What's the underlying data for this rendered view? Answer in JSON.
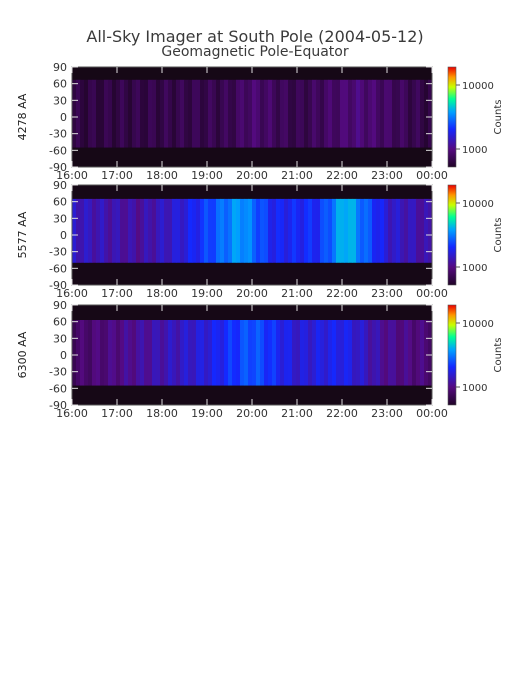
{
  "title": "All-Sky Imager at South Pole (2004-05-12)",
  "subtitle": "Geomagnetic Pole-Equator",
  "chart_data": [
    {
      "type": "heatmap",
      "ylabel": "4278 AA",
      "colorbar_label": "Counts",
      "colorbar_ticks": [
        "10000",
        "1000"
      ],
      "x_ticks": [
        "16:00",
        "17:00",
        "18:00",
        "19:00",
        "20:00",
        "21:00",
        "22:00",
        "23:00",
        "00:00"
      ],
      "xlim": [
        "16:00",
        "00:00"
      ],
      "y_ticks": [
        90,
        60,
        30,
        0,
        -30,
        -60,
        -90
      ],
      "ylim": [
        -90,
        90
      ],
      "data_coverage": [
        -55,
        67
      ],
      "intensity_profile": [
        {
          "time": "16:00",
          "level": 0.05
        },
        {
          "time": "19:30",
          "level": 0.08
        },
        {
          "time": "20:00",
          "level": 0.14
        },
        {
          "time": "21:00",
          "level": 0.07
        },
        {
          "time": "22:20",
          "level": 0.16
        },
        {
          "time": "00:00",
          "level": 0.05
        }
      ]
    },
    {
      "type": "heatmap",
      "ylabel": "5577 AA",
      "colorbar_label": "Counts",
      "colorbar_ticks": [
        "10000",
        "1000"
      ],
      "x_ticks": [
        "16:00",
        "17:00",
        "18:00",
        "19:00",
        "20:00",
        "21:00",
        "22:00",
        "23:00",
        "00:00"
      ],
      "xlim": [
        "16:00",
        "00:00"
      ],
      "y_ticks": [
        90,
        60,
        30,
        0,
        -30,
        -60,
        -90
      ],
      "ylim": [
        -90,
        90
      ],
      "data_coverage": [
        -50,
        65
      ],
      "intensity_profile": [
        {
          "time": "16:00",
          "level": 0.28
        },
        {
          "time": "17:30",
          "level": 0.22
        },
        {
          "time": "18:30",
          "level": 0.32
        },
        {
          "time": "19:45",
          "level": 0.55
        },
        {
          "time": "20:30",
          "level": 0.35
        },
        {
          "time": "21:30",
          "level": 0.38
        },
        {
          "time": "22:05",
          "level": 0.6
        },
        {
          "time": "23:00",
          "level": 0.3
        },
        {
          "time": "00:00",
          "level": 0.22
        }
      ]
    },
    {
      "type": "heatmap",
      "ylabel": "6300 AA",
      "colorbar_label": "Counts",
      "colorbar_ticks": [
        "10000",
        "1000"
      ],
      "x_ticks": [
        "16:00",
        "17:00",
        "18:00",
        "19:00",
        "20:00",
        "21:00",
        "22:00",
        "23:00",
        "00:00"
      ],
      "xlim": [
        "16:00",
        "00:00"
      ],
      "y_ticks": [
        90,
        60,
        30,
        0,
        -30,
        -60,
        -90
      ],
      "ylim": [
        -90,
        90
      ],
      "data_coverage": [
        -55,
        63
      ],
      "intensity_profile": [
        {
          "time": "16:00",
          "level": 0.12
        },
        {
          "time": "17:00",
          "level": 0.18
        },
        {
          "time": "18:00",
          "level": 0.25
        },
        {
          "time": "19:00",
          "level": 0.32
        },
        {
          "time": "20:00",
          "level": 0.45
        },
        {
          "time": "21:00",
          "level": 0.3
        },
        {
          "time": "22:00",
          "level": 0.35
        },
        {
          "time": "23:00",
          "level": 0.2
        },
        {
          "time": "00:00",
          "level": 0.15
        }
      ]
    }
  ],
  "colors": {
    "background": "#ffffff",
    "nodata": "#160816",
    "low": "#2a1050",
    "mid": "#1a3cff",
    "high": "#ff2000"
  }
}
